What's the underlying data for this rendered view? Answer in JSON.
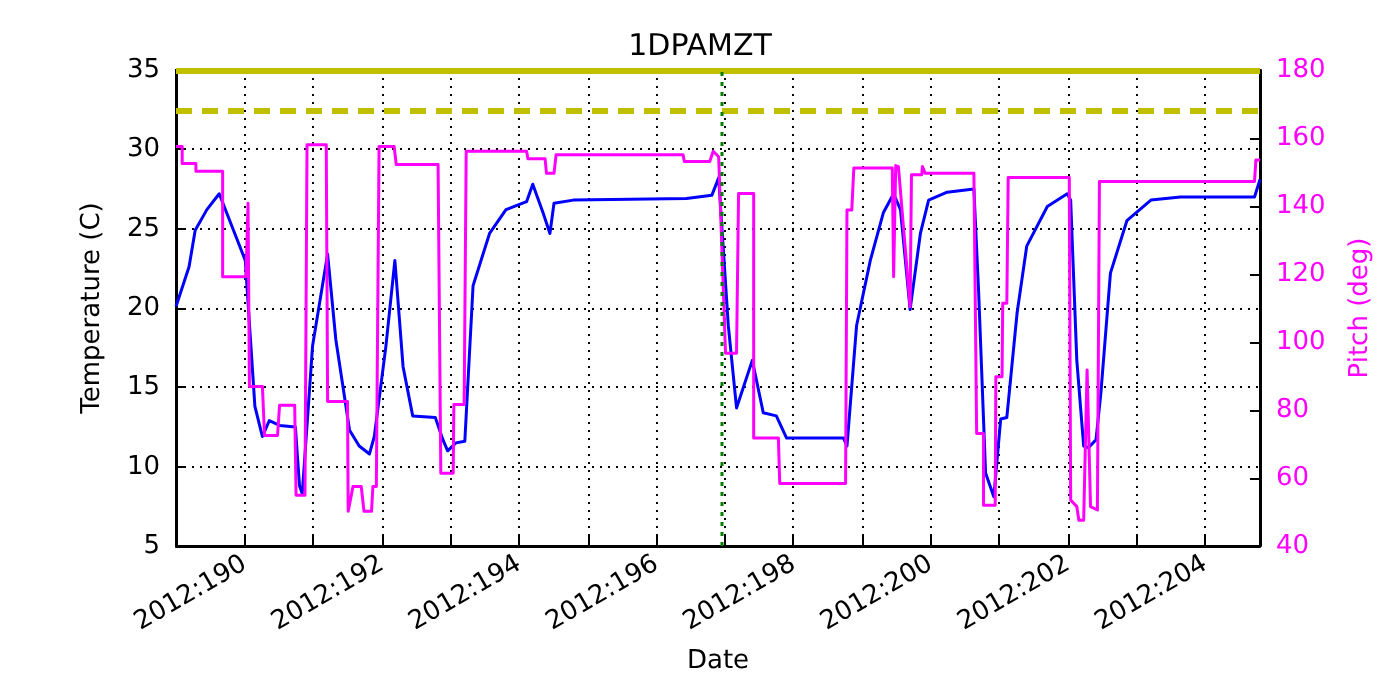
{
  "chart_data": {
    "type": "line",
    "title": "1DPAMZT",
    "xlabel": "Date",
    "ylabel": "Temperature (C)",
    "y2label": "Pitch (deg)",
    "xlim": [
      "2012-07-07T00:00",
      "2012-07-22T19:12"
    ],
    "xticks": [
      {
        "value": "2012-07-08",
        "label": "2012:190"
      },
      {
        "value": "2012-07-09",
        "label": null
      },
      {
        "value": "2012-07-10",
        "label": "2012:192"
      },
      {
        "value": "2012-07-11",
        "label": null
      },
      {
        "value": "2012-07-12",
        "label": "2012:194"
      },
      {
        "value": "2012-07-13",
        "label": null
      },
      {
        "value": "2012-07-14",
        "label": "2012:196"
      },
      {
        "value": "2012-07-15",
        "label": null
      },
      {
        "value": "2012-07-16",
        "label": "2012:198"
      },
      {
        "value": "2012-07-17",
        "label": null
      },
      {
        "value": "2012-07-18",
        "label": "2012:200"
      },
      {
        "value": "2012-07-19",
        "label": null
      },
      {
        "value": "2012-07-20",
        "label": "2012:202"
      },
      {
        "value": "2012-07-21",
        "label": null
      },
      {
        "value": "2012-07-22",
        "label": "2012:204"
      }
    ],
    "ylim": [
      5,
      35
    ],
    "yticks": [
      5,
      10,
      15,
      20,
      25,
      30,
      35
    ],
    "y2lim": [
      40,
      180
    ],
    "y2ticks": [
      40,
      60,
      80,
      100,
      120,
      140,
      160,
      180
    ],
    "grid": true,
    "marker": "none",
    "line_style": "solid",
    "ref_lines": [
      {
        "axis": "y",
        "value": 32.4,
        "label": null,
        "color": "#bfbf00",
        "line_style": "dashed"
      },
      {
        "axis": "y",
        "value": 35,
        "label": null,
        "color": "#bfbf00",
        "line_style": "solid"
      },
      {
        "axis": "x",
        "value": "2012-07-14T23:02",
        "label": null,
        "color": "#008000",
        "line_style": "dotted"
      }
    ],
    "series": [
      {
        "color": "#0000ff",
        "x": [
          "2012-07-07T00:00",
          "2012-07-07T04:34",
          "2012-07-07T06:43",
          "2012-07-07T10:48",
          "2012-07-07T15:07",
          "2012-07-08T00:14",
          "2012-07-08T03:36",
          "2012-07-08T06:14",
          "2012-07-08T08:38",
          "2012-07-08T12:14",
          "2012-07-08T17:46",
          "2012-07-08T19:12",
          "2012-07-08T20:10",
          "2012-07-08T23:46",
          "2012-07-09T05:02",
          "2012-07-09T07:55",
          "2012-07-09T12:43",
          "2012-07-09T16:05",
          "2012-07-09T19:41",
          "2012-07-09T21:22",
          "2012-07-10T01:26",
          "2012-07-10T04:34",
          "2012-07-10T07:26",
          "2012-07-10T10:48",
          "2012-07-10T18:43",
          "2012-07-10T21:22",
          "2012-07-10T23:02",
          "2012-07-11T01:55",
          "2012-07-11T05:02",
          "2012-07-11T07:55",
          "2012-07-11T13:41",
          "2012-07-11T19:26",
          "2012-07-12T02:38",
          "2012-07-12T04:48",
          "2012-07-12T08:24",
          "2012-07-12T10:48",
          "2012-07-12T12:14",
          "2012-07-12T18:58",
          "2012-07-14T10:34",
          "2012-07-14T19:26",
          "2012-07-14T21:50",
          "2012-07-15T01:12",
          "2012-07-15T04:05",
          "2012-07-15T09:36",
          "2012-07-15T13:26",
          "2012-07-15T18:00",
          "2012-07-15T21:36",
          "2012-07-16T17:31",
          "2012-07-16T18:43",
          "2012-07-16T22:05",
          "2012-07-17T02:53",
          "2012-07-17T07:26",
          "2012-07-17T11:02",
          "2012-07-17T13:26",
          "2012-07-17T16:48",
          "2012-07-17T20:24",
          "2012-07-17T23:17",
          "2012-07-18T05:46",
          "2012-07-18T15:07",
          "2012-07-18T16:48",
          "2012-07-18T19:12",
          "2012-07-18T22:05",
          "2012-07-19T00:29",
          "2012-07-19T02:38",
          "2012-07-19T06:14",
          "2012-07-19T09:36",
          "2012-07-19T16:48",
          "2012-07-19T23:46",
          "2012-07-20T00:58",
          "2012-07-20T03:07",
          "2012-07-20T05:31",
          "2012-07-20T07:12",
          "2012-07-20T09:50",
          "2012-07-20T11:31",
          "2012-07-20T14:53",
          "2012-07-20T20:38",
          "2012-07-21T05:02",
          "2012-07-21T15:22",
          "2012-07-22T17:17",
          "2012-07-22T19:12"
        ],
        "values": [
          20.1,
          22.6,
          24.9,
          26.2,
          27.2,
          23.0,
          13.8,
          11.9,
          12.9,
          12.6,
          12.5,
          8.8,
          8.3,
          17.6,
          23.4,
          18.0,
          12.3,
          11.3,
          10.8,
          11.9,
          17.6,
          23.0,
          16.3,
          13.2,
          13.1,
          11.7,
          11.0,
          11.5,
          11.6,
          21.4,
          24.7,
          26.2,
          26.7,
          27.8,
          26.0,
          24.7,
          26.6,
          26.8,
          26.9,
          27.1,
          28.2,
          18.9,
          13.7,
          16.7,
          13.4,
          13.2,
          11.8,
          11.8,
          11.3,
          18.9,
          23.0,
          26.0,
          27.2,
          26.2,
          19.9,
          24.7,
          26.8,
          27.3,
          27.5,
          20.9,
          9.6,
          8.1,
          13.0,
          13.1,
          19.7,
          23.9,
          26.4,
          27.2,
          26.8,
          16.7,
          11.3,
          11.2,
          11.7,
          14.6,
          22.2,
          25.5,
          26.8,
          27.0,
          27.0,
          28.1
        ]
      },
      {
        "color": "#ff00ff",
        "axis": "y2",
        "x": [
          "2012-07-07T00:00",
          "2012-07-07T02:10",
          "2012-07-07T02:10",
          "2012-07-07T06:58",
          "2012-07-07T06:58",
          "2012-07-07T16:19",
          "2012-07-07T16:19",
          "2012-07-08T00:29",
          "2012-07-08T01:12",
          "2012-07-08T01:41",
          "2012-07-08T06:14",
          "2012-07-08T06:58",
          "2012-07-08T11:31",
          "2012-07-08T12:14",
          "2012-07-08T17:31",
          "2012-07-08T18:00",
          "2012-07-08T21:07",
          "2012-07-08T21:50",
          "2012-07-09T04:34",
          "2012-07-09T05:02",
          "2012-07-09T12:00",
          "2012-07-09T12:14",
          "2012-07-09T13:55",
          "2012-07-09T16:48",
          "2012-07-09T17:46",
          "2012-07-09T20:24",
          "2012-07-09T20:53",
          "2012-07-09T22:05",
          "2012-07-09T23:02",
          "2012-07-10T04:19",
          "2012-07-10T05:02",
          "2012-07-10T19:41",
          "2012-07-10T20:38",
          "2012-07-11T00:58",
          "2012-07-11T01:12",
          "2012-07-11T04:48",
          "2012-07-11T05:31",
          "2012-07-12T02:38",
          "2012-07-12T03:07",
          "2012-07-12T09:07",
          "2012-07-12T09:36",
          "2012-07-12T12:14",
          "2012-07-12T12:58",
          "2012-07-14T09:22",
          "2012-07-14T09:50",
          "2012-07-14T18:43",
          "2012-07-14T19:55",
          "2012-07-14T21:50",
          "2012-07-15T00:14",
          "2012-07-15T04:05",
          "2012-07-15T04:48",
          "2012-07-15T10:05",
          "2012-07-15T10:05",
          "2012-07-15T18:43",
          "2012-07-15T19:12",
          "2012-07-16T18:14",
          "2012-07-16T18:43",
          "2012-07-16T20:24",
          "2012-07-16T21:07",
          "2012-07-17T10:34",
          "2012-07-17T11:02",
          "2012-07-17T11:46",
          "2012-07-17T12:43",
          "2012-07-17T16:48",
          "2012-07-17T17:17",
          "2012-07-17T20:53",
          "2012-07-17T21:07",
          "2012-07-17T22:05",
          "2012-07-18T15:07",
          "2012-07-18T16:05",
          "2012-07-18T18:29",
          "2012-07-18T18:29",
          "2012-07-18T22:34",
          "2012-07-18T22:48",
          "2012-07-19T00:58",
          "2012-07-19T01:12",
          "2012-07-19T02:38",
          "2012-07-19T03:07",
          "2012-07-20T00:29",
          "2012-07-20T00:58",
          "2012-07-20T03:07",
          "2012-07-20T03:50",
          "2012-07-20T05:31",
          "2012-07-20T06:43",
          "2012-07-20T07:55",
          "2012-07-20T10:19",
          "2012-07-20T11:02",
          "2012-07-22T17:17",
          "2012-07-22T17:46",
          "2012-07-22T19:12"
        ],
        "values": [
          157.5,
          157.5,
          152.5,
          152.5,
          150.2,
          150.2,
          119.2,
          119.2,
          140.8,
          86.9,
          86.9,
          72.5,
          72.5,
          81.4,
          81.4,
          54.9,
          54.9,
          158.0,
          158.0,
          82.5,
          82.5,
          50.2,
          57.5,
          57.5,
          50.2,
          50.2,
          57.5,
          57.5,
          157.5,
          157.5,
          152.2,
          152.2,
          61.4,
          61.4,
          81.6,
          81.6,
          156.1,
          156.1,
          153.9,
          153.9,
          149.6,
          149.6,
          155.1,
          155.1,
          153.1,
          153.1,
          156.1,
          154.5,
          96.7,
          96.7,
          143.7,
          143.7,
          71.8,
          71.8,
          58.4,
          58.4,
          138.8,
          138.8,
          151.2,
          151.2,
          119.2,
          151.9,
          151.6,
          110.4,
          149.2,
          149.2,
          151.6,
          149.6,
          149.6,
          73.1,
          73.1,
          52.0,
          52.0,
          89.8,
          89.8,
          111.4,
          111.4,
          148.4,
          148.4,
          53.5,
          51.6,
          47.6,
          47.6,
          91.8,
          51.6,
          50.6,
          147.2,
          147.2,
          153.5,
          153.5
        ]
      }
    ]
  }
}
